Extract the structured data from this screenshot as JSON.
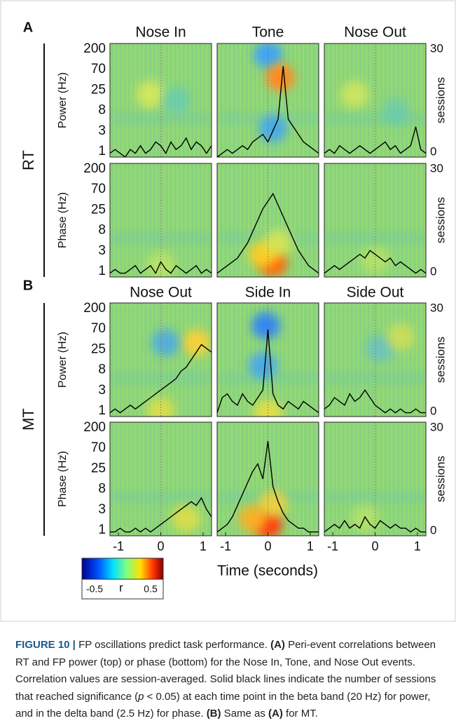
{
  "figure": {
    "panels": [
      {
        "label": "A",
        "row_label": "RT",
        "columns": [
          "Nose In",
          "Tone",
          "Nose Out"
        ],
        "rows": [
          {
            "ylabel": "Power (Hz)",
            "sessions": [
              [
                1,
                2,
                1,
                0,
                2,
                1,
                3,
                1,
                2,
                4,
                3,
                1,
                4,
                2,
                3,
                5,
                2,
                4,
                3,
                1,
                3
              ],
              [
                0,
                1,
                2,
                1,
                2,
                3,
                2,
                4,
                5,
                6,
                4,
                7,
                10,
                24,
                10,
                8,
                6,
                4,
                3,
                2,
                1
              ],
              [
                1,
                2,
                1,
                3,
                2,
                1,
                2,
                3,
                2,
                1,
                2,
                3,
                4,
                2,
                3,
                1,
                2,
                3,
                8,
                2,
                1
              ]
            ]
          },
          {
            "ylabel": "Phase (Hz)",
            "sessions": [
              [
                1,
                2,
                1,
                1,
                2,
                3,
                1,
                2,
                3,
                1,
                4,
                2,
                1,
                3,
                2,
                1,
                2,
                3,
                1,
                2,
                1
              ],
              [
                1,
                2,
                3,
                4,
                5,
                7,
                9,
                12,
                15,
                18,
                20,
                22,
                19,
                16,
                13,
                10,
                7,
                5,
                3,
                2,
                1
              ],
              [
                1,
                2,
                3,
                2,
                3,
                4,
                5,
                6,
                5,
                7,
                6,
                5,
                4,
                5,
                3,
                4,
                3,
                2,
                1,
                2,
                1
              ]
            ]
          }
        ]
      },
      {
        "label": "B",
        "row_label": "MT",
        "columns": [
          "Nose Out",
          "Side In",
          "Side Out"
        ],
        "rows": [
          {
            "ylabel": "Power (Hz)",
            "sessions": [
              [
                1,
                2,
                1,
                2,
                3,
                2,
                3,
                4,
                5,
                6,
                7,
                8,
                9,
                10,
                12,
                13,
                15,
                17,
                19,
                18,
                17
              ],
              [
                1,
                5,
                6,
                4,
                3,
                6,
                4,
                3,
                5,
                7,
                23,
                6,
                3,
                2,
                4,
                3,
                2,
                4,
                3,
                2,
                1
              ],
              [
                2,
                3,
                5,
                4,
                3,
                6,
                4,
                5,
                7,
                5,
                3,
                2,
                1,
                2,
                1,
                2,
                1,
                1,
                2,
                1,
                1
              ]
            ]
          },
          {
            "ylabel": "Phase (Hz)",
            "sessions": [
              [
                1,
                1,
                2,
                1,
                1,
                2,
                1,
                2,
                1,
                2,
                3,
                4,
                5,
                6,
                7,
                8,
                9,
                8,
                10,
                7,
                5
              ],
              [
                1,
                2,
                3,
                5,
                8,
                11,
                14,
                17,
                19,
                15,
                25,
                13,
                9,
                6,
                4,
                3,
                2,
                2,
                1,
                1,
                1
              ],
              [
                1,
                2,
                3,
                2,
                4,
                2,
                3,
                2,
                5,
                3,
                2,
                4,
                3,
                2,
                3,
                2,
                2,
                1,
                2,
                1,
                1
              ]
            ]
          }
        ]
      }
    ],
    "freq_ticks": [
      "200",
      "70",
      "25",
      "8",
      "3",
      "1"
    ],
    "xlim": [
      -1.2,
      1.2
    ],
    "xticks": [
      -1,
      0,
      1
    ],
    "xlabel": "Time (seconds)",
    "y2lim": [
      0,
      30
    ],
    "y2ticks": [
      0,
      30
    ],
    "y2label": "sessions",
    "colorbar": {
      "min_label": "-0.5",
      "symbol": "r",
      "max_label": "0.5"
    },
    "caption": [
      {
        "text": "FIGURE 10 | ",
        "style": "fig"
      },
      {
        "text": "FP oscillations predict task performance. ",
        "style": "normal"
      },
      {
        "text": "(A)",
        "style": "bold"
      },
      {
        "text": " Peri-event correlations between RT and FP power (top) or phase (bottom) for the Nose In, Tone, and Nose Out events. Correlation values are session-averaged. Solid black lines indicate the number of sessions that reached significance (",
        "style": "normal"
      },
      {
        "text": "p",
        "style": "italic"
      },
      {
        "text": " < 0.05) at each time point in the beta band (20 Hz) for power, and in the delta band (2.5 Hz) for phase. ",
        "style": "normal"
      },
      {
        "text": "(B)",
        "style": "bold"
      },
      {
        "text": " Same as ",
        "style": "normal"
      },
      {
        "text": "(A)",
        "style": "bold"
      },
      {
        "text": " for MT.",
        "style": "normal"
      }
    ]
  }
}
